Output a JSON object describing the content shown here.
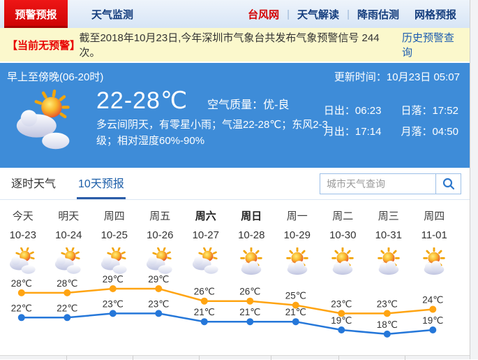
{
  "nav": {
    "tabs": [
      {
        "label": "预警预报",
        "active": true
      },
      {
        "label": "天气监测",
        "active": false
      }
    ],
    "links": [
      "台风网",
      "天气解读",
      "降雨估测",
      "网格预报"
    ],
    "separators_after": [
      0,
      1
    ]
  },
  "alert_bar": {
    "badge": "【当前无预警】",
    "text": "截至2018年10月23日,今年深圳市气象台共发布气象预警信号 244 次。",
    "link": "历史预警查询"
  },
  "hero": {
    "period": "早上至傍晚(06-20时)",
    "updated": "更新时间：10月23日 05:07",
    "temp_range": "22-28℃",
    "air_quality": "空气质量：优-良",
    "description": "多云间阴天，有零星小雨；气温22-28℃；东风2-3级；相对湿度60%-90%",
    "weather_icon": "sun-behind-clouds-icon",
    "sun_moon": [
      {
        "label": "日出",
        "time": "06:23"
      },
      {
        "label": "日落",
        "time": "17:52"
      },
      {
        "label": "月出",
        "time": "17:14"
      },
      {
        "label": "月落",
        "time": "04:50"
      }
    ]
  },
  "forecast_tabs": [
    {
      "label": "逐时天气",
      "active": false
    },
    {
      "label": "10天预报",
      "active": true
    }
  ],
  "search": {
    "placeholder": "城市天气查询",
    "icon": "search-icon"
  },
  "chart_data": {
    "type": "line",
    "categories": [
      "今天",
      "明天",
      "周四",
      "周五",
      "周六",
      "周日",
      "周一",
      "周二",
      "周三",
      "周四"
    ],
    "dates": [
      "10-23",
      "10-24",
      "10-25",
      "10-26",
      "10-27",
      "10-28",
      "10-29",
      "10-30",
      "10-31",
      "11-01"
    ],
    "bold_days": [
      4,
      5
    ],
    "icons": [
      "sun-behind-clouds-icon",
      "sun-behind-clouds-icon",
      "sun-behind-clouds-icon",
      "sun-behind-clouds-icon",
      "sun-behind-clouds-icon",
      "sun-with-cloud-icon",
      "sun-with-cloud-icon",
      "sun-with-cloud-icon",
      "sun-with-cloud-icon",
      "sun-with-cloud-icon"
    ],
    "series": [
      {
        "name": "high",
        "color": "#ffa412",
        "values": [
          28,
          28,
          29,
          29,
          26,
          26,
          25,
          23,
          23,
          24
        ]
      },
      {
        "name": "low",
        "color": "#2577d9",
        "values": [
          22,
          22,
          23,
          23,
          21,
          21,
          21,
          19,
          18,
          19
        ]
      }
    ],
    "unit": "℃",
    "legend_position": "none",
    "grid": false
  },
  "colors": {
    "hero_bg": "#3e8cd8",
    "tab_red": "#d50f0f",
    "alert_bg": "#fbf8cc",
    "accent_blue": "#1e5fa9",
    "high_line": "#ffa412",
    "low_line": "#2577d9"
  }
}
